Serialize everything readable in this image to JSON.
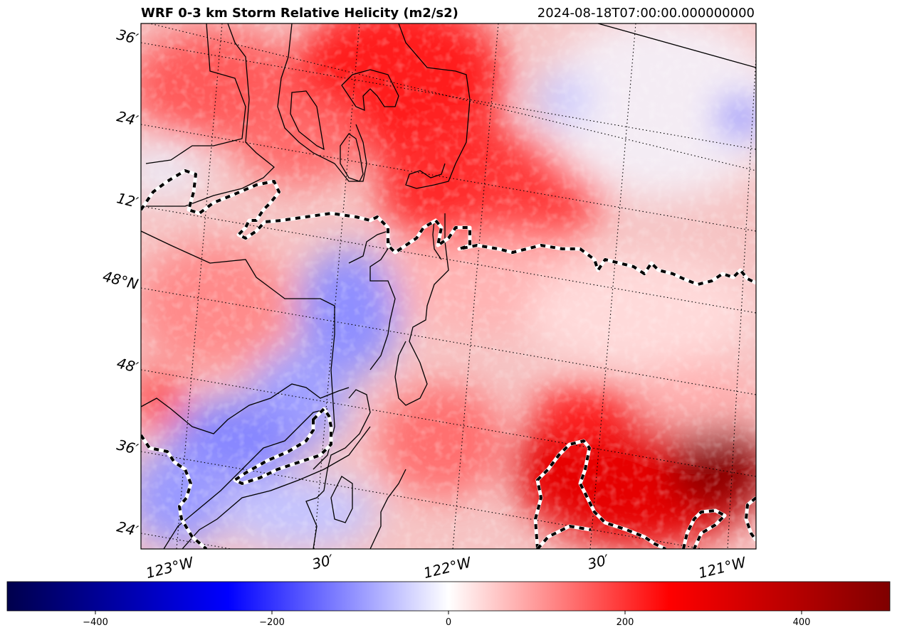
{
  "title": "WRF 0-3 km Storm Relative Helicity (m2/s2)",
  "timestamp": "2024-08-18T07:00:00.000000000",
  "lat_labels": [
    "36′",
    "24′",
    "12′",
    "48°N",
    "48′",
    "36′",
    "24′"
  ],
  "lon_labels": [
    "123°W",
    "30′",
    "122°W",
    "30′",
    "121°W"
  ],
  "colorbar": {
    "colormap": "seismic",
    "min": -500,
    "max": 500,
    "ticks": [
      -400,
      -200,
      0,
      200,
      400
    ],
    "tick_labels": [
      "−400",
      "−200",
      "0",
      "200",
      "400"
    ],
    "stops": [
      "#00004c",
      "#0000ff",
      "#ffffff",
      "#ff0000",
      "#7f0000"
    ]
  },
  "style": {
    "coastline_color": "#000000",
    "dashed_contour_colors": [
      "#000000",
      "#ffffff"
    ],
    "graticule": "dotted"
  }
}
